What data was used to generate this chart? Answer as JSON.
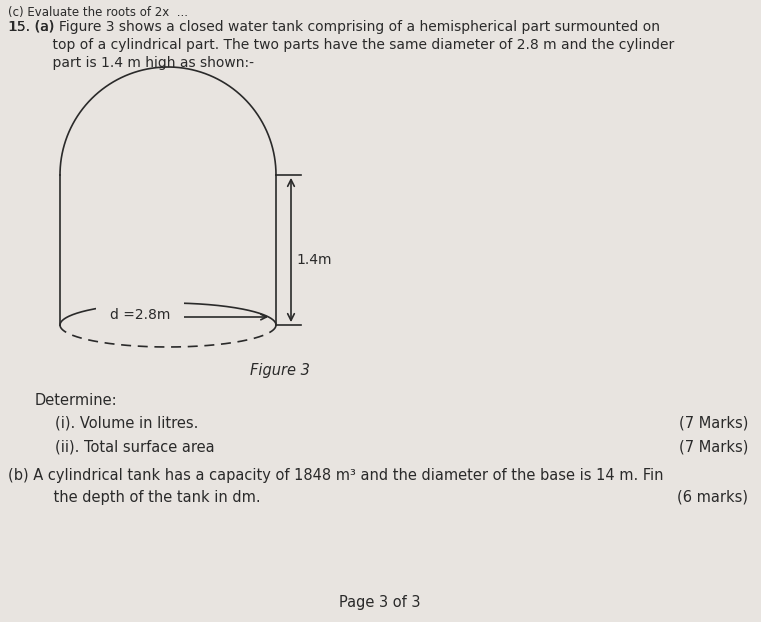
{
  "bg_color": "#e8e4e0",
  "text_color": "#2a2a2a",
  "figure_label": "Figure 3",
  "determine_text": "Determine:",
  "item_i": "(i). Volume in litres.",
  "item_i_marks": "(7 Marks)",
  "item_ii": "(ii). Total surface area",
  "item_ii_marks": "(7 Marks)",
  "part_b_marks": "(6 marks)",
  "page_footer": "Page 3 of 3",
  "dim_label_height": "1.4m",
  "dim_label_diam": "d =2.8m"
}
